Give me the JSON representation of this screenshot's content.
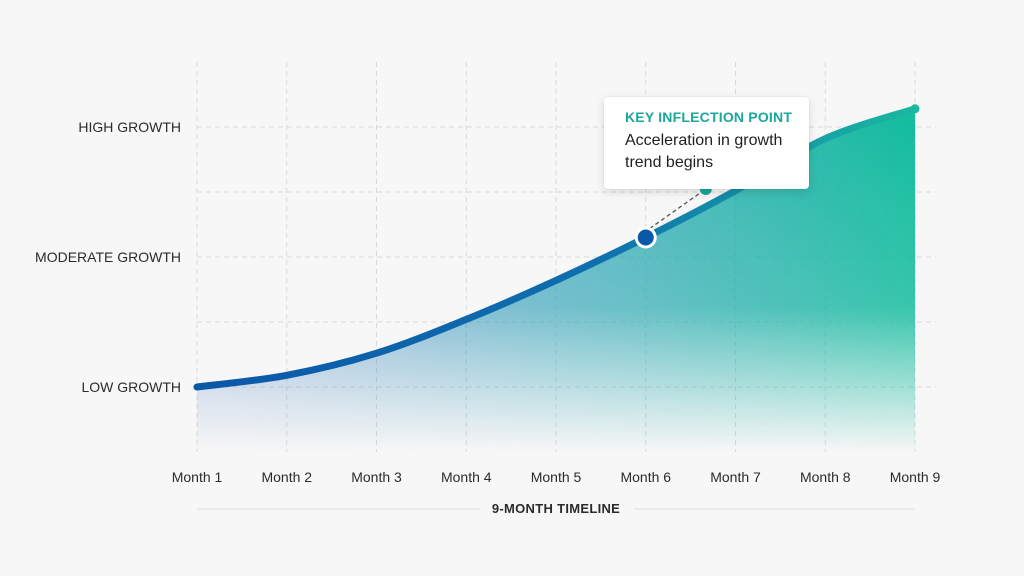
{
  "chart_data": {
    "type": "area",
    "categories": [
      "Month 1",
      "Month 2",
      "Month 3",
      "Month 4",
      "Month 5",
      "Month 6",
      "Month 7",
      "Month 8",
      "Month 9"
    ],
    "x": [
      1,
      2,
      3,
      4,
      5,
      6,
      7,
      8,
      9
    ],
    "y_levels": [
      "LOW GROWTH",
      "MODERATE GROWTH",
      "HIGH GROWTH"
    ],
    "series": [
      {
        "values": [
          1.0,
          1.09,
          1.26,
          1.52,
          1.82,
          2.15,
          2.51,
          2.91,
          3.14
        ]
      }
    ],
    "ylim": [
      0.5,
      3.5
    ],
    "xlabel": "9-MONTH TIMELINE",
    "ylabel": "",
    "title": "",
    "grid": true,
    "annotation": {
      "title": "KEY INFLECTION POINT",
      "text": "Acceleration in growth trend begins",
      "x": 6,
      "y": 2.15
    },
    "colors": {
      "line_start": "#0b57a8",
      "line_end": "#1ab8a0",
      "accent": "#1aa89a",
      "grid": "#d9d9d9",
      "marker_fill": "#0b57a8"
    }
  }
}
